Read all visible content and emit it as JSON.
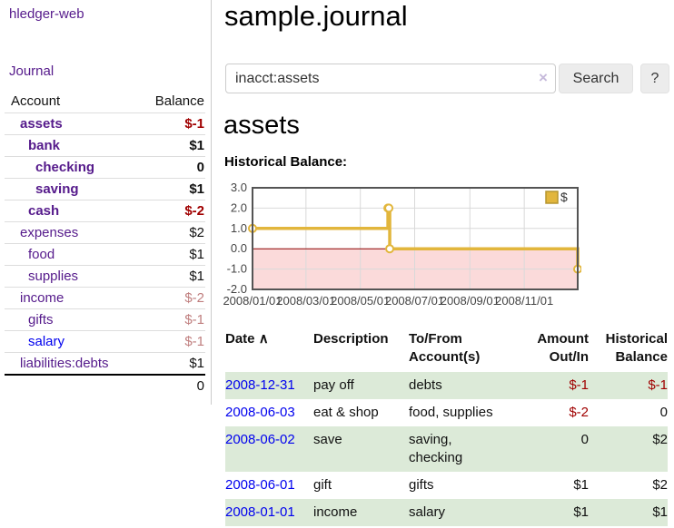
{
  "colors": {
    "visited_link_purple": "#551a8b",
    "unvisited_link_blue": "#0000ee",
    "negative_red": "#a00000",
    "faded_negative_red": "#c07f7f",
    "row_stripe_green": "#dcead8",
    "chart_line_gold": "#e2b63c",
    "chart_negative_fill_pink": "#fbdada",
    "chart_zero_line_red": "#8b0000",
    "chart_border_gray": "#545454"
  },
  "sidebar": {
    "brand": "hledger-web",
    "journal_link": "Journal",
    "accounts": {
      "headers": {
        "account": "Account",
        "balance": "Balance"
      },
      "rows": [
        {
          "name": "assets",
          "balance": "$-1",
          "depth": 1,
          "matched": true,
          "balance_style": "neg",
          "link_style": "visited"
        },
        {
          "name": "bank",
          "balance": "$1",
          "depth": 2,
          "matched": true,
          "balance_style": "pos",
          "link_style": "visited"
        },
        {
          "name": "checking",
          "balance": "0",
          "depth": 3,
          "matched": true,
          "balance_style": "pos",
          "link_style": "visited"
        },
        {
          "name": "saving",
          "balance": "$1",
          "depth": 3,
          "matched": true,
          "balance_style": "pos",
          "link_style": "visited"
        },
        {
          "name": "cash",
          "balance": "$-2",
          "depth": 2,
          "matched": true,
          "balance_style": "neg",
          "link_style": "visited"
        },
        {
          "name": "expenses",
          "balance": "$2",
          "depth": 1,
          "matched": false,
          "balance_style": "pos",
          "link_style": "visited"
        },
        {
          "name": "food",
          "balance": "$1",
          "depth": 2,
          "matched": false,
          "balance_style": "pos",
          "link_style": "visited"
        },
        {
          "name": "supplies",
          "balance": "$1",
          "depth": 2,
          "matched": false,
          "balance_style": "pos",
          "link_style": "visited"
        },
        {
          "name": "income",
          "balance": "$-2",
          "depth": 1,
          "matched": false,
          "balance_style": "neg-faded",
          "link_style": "visited"
        },
        {
          "name": "gifts",
          "balance": "$-1",
          "depth": 2,
          "matched": false,
          "balance_style": "neg-faded",
          "link_style": "visited"
        },
        {
          "name": "salary",
          "balance": "$-1",
          "depth": 2,
          "matched": false,
          "balance_style": "neg-faded",
          "link_style": "unvisited"
        },
        {
          "name": "liabilities:debts",
          "balance": "$1",
          "depth": 1,
          "matched": false,
          "balance_style": "pos",
          "link_style": "visited"
        }
      ],
      "total": "0"
    }
  },
  "main": {
    "title": "sample.journal",
    "search": {
      "query": "inacct:assets",
      "clear_icon": "×",
      "button_label": "Search",
      "help_label": "?"
    },
    "account_heading": "assets",
    "chart_label": "Historical Balance:"
  },
  "chart_data": {
    "type": "line",
    "title": "Historical Balance",
    "step": "after",
    "ylim": [
      -2,
      3
    ],
    "y_ticks": [
      3.0,
      2.0,
      1.0,
      0.0,
      -1.0,
      -2.0
    ],
    "x_ticks": [
      "2008/01/01",
      "2008/03/01",
      "2008/05/01",
      "2008/07/01",
      "2008/09/01",
      "2008/11/01"
    ],
    "x_range": [
      "2008-01-01",
      "2008-12-31"
    ],
    "grid": true,
    "legend": {
      "label": "$",
      "position": "top-right"
    },
    "series": [
      {
        "name": "$",
        "color": "#e2b63c",
        "points": [
          [
            "2008-01-01",
            1
          ],
          [
            "2008-06-01",
            2
          ],
          [
            "2008-06-02",
            2
          ],
          [
            "2008-06-03",
            0
          ],
          [
            "2008-12-31",
            -1
          ]
        ]
      }
    ]
  },
  "register": {
    "headers": {
      "date": "Date",
      "sort_icon": "∧",
      "description": "Description",
      "tofrom": "To/From Account(s)",
      "amount": "Amount Out/In",
      "balance": "Historical Balance"
    },
    "rows": [
      {
        "date": "2008-12-31",
        "description": "pay off",
        "accounts": "debts",
        "amount": "$-1",
        "amount_neg": true,
        "balance": "$-1",
        "balance_neg": true,
        "stripe": true
      },
      {
        "date": "2008-06-03",
        "description": "eat & shop",
        "accounts": "food, supplies",
        "amount": "$-2",
        "amount_neg": true,
        "balance": "0",
        "balance_neg": false,
        "stripe": false
      },
      {
        "date": "2008-06-02",
        "description": "save",
        "accounts": "saving, checking",
        "amount": "0",
        "amount_neg": false,
        "balance": "$2",
        "balance_neg": false,
        "stripe": true
      },
      {
        "date": "2008-06-01",
        "description": "gift",
        "accounts": "gifts",
        "amount": "$1",
        "amount_neg": false,
        "balance": "$2",
        "balance_neg": false,
        "stripe": false
      },
      {
        "date": "2008-01-01",
        "description": "income",
        "accounts": "salary",
        "amount": "$1",
        "amount_neg": false,
        "balance": "$1",
        "balance_neg": false,
        "stripe": true
      }
    ]
  }
}
